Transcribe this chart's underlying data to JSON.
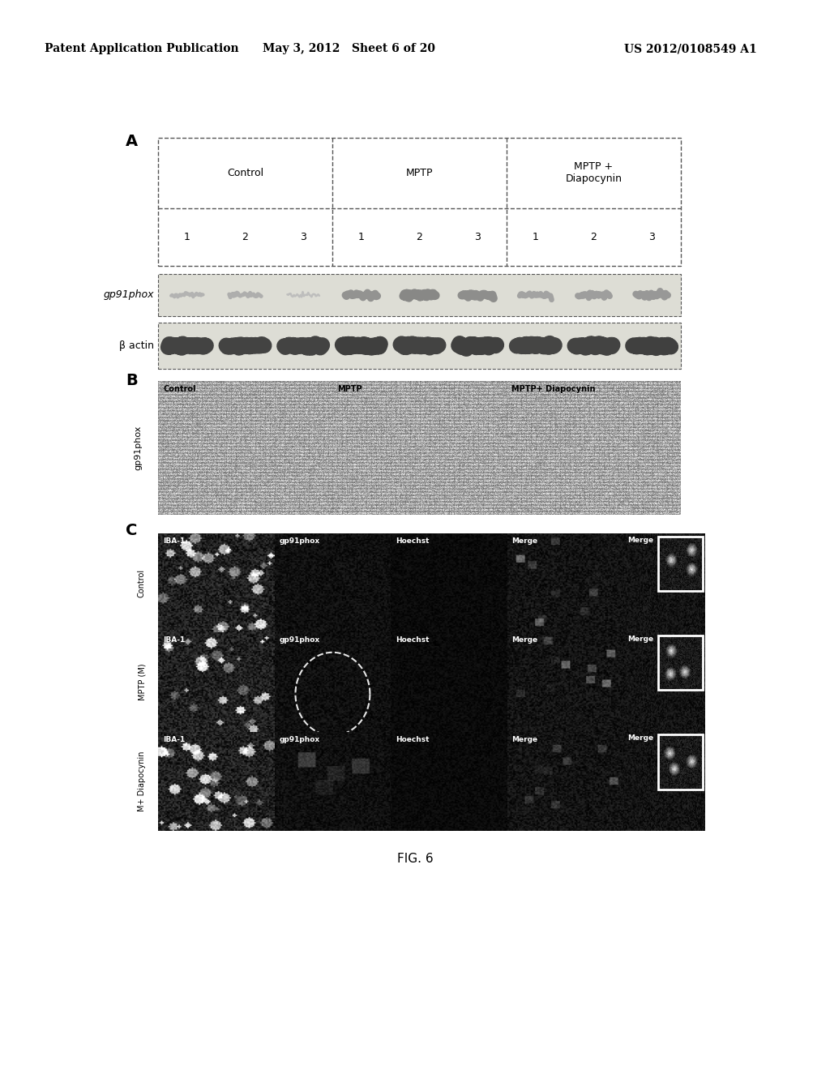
{
  "header_left": "Patent Application Publication",
  "header_mid": "May 3, 2012   Sheet 6 of 20",
  "header_right": "US 2012/0108549 A1",
  "section_A_label": "A",
  "section_B_label": "B",
  "section_C_label": "C",
  "table_groups": [
    "Control",
    "MPTP",
    "MPTP +\nDiapocynin"
  ],
  "table_lanes": [
    "1",
    "2",
    "3",
    "1",
    "2",
    "3",
    "1",
    "2",
    "3"
  ],
  "blot_label_gp91": "gp91phox",
  "blot_label_actin": "β actin",
  "panel_B_labels": [
    "Control",
    "MPTP",
    "MPTP+ Diapocynin"
  ],
  "panel_B_ylabel": "gp91phox",
  "panel_C_rows": [
    "Control",
    "MPTP (M)",
    "M+ Diapocynin"
  ],
  "panel_C_cols": [
    "IBA-1",
    "gp91phox",
    "Hoechst",
    "Merge"
  ],
  "fig_label": "FIG. 6",
  "bg_color": "#ffffff",
  "text_color": "#000000"
}
